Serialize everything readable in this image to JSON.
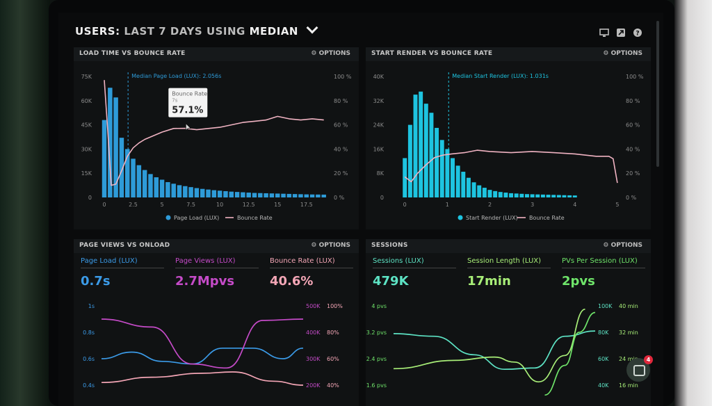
{
  "header": {
    "prefix": "USERS:",
    "dim_part": "LAST 7 DAYS",
    "middle": "USING",
    "metric": "MEDIAN"
  },
  "toolbar": {
    "icons": [
      "monitor-icon",
      "export-icon",
      "help-icon"
    ]
  },
  "panel1": {
    "title": "LOAD TIME VS BOUNCE RATE",
    "options": "⚙ OPTIONS",
    "median_label": "Median Page Load (LUX): 2.056s",
    "tooltip": {
      "title": "Bounce Rate",
      "sub": "7s",
      "value": "57.1%"
    },
    "legend": [
      "Page Load (LUX)",
      "Bounce Rate"
    ]
  },
  "panel2": {
    "title": "START RENDER VS BOUNCE RATE",
    "options": "⚙ OPTIONS",
    "median_label": "Median Start Render (LUX): 1.031s",
    "legend": [
      "Start Render (LUX)",
      "Bounce Rate"
    ]
  },
  "panel3": {
    "title": "PAGE VIEWS VS ONLOAD",
    "options": "⚙ OPTIONS",
    "kpis": [
      {
        "label": "Page Load (LUX)",
        "value": "0.7s",
        "color": "#3b9be8"
      },
      {
        "label": "Page Views (LUX)",
        "value": "2.7Mpvs",
        "color": "#c54bc8"
      },
      {
        "label": "Bounce Rate (LUX)",
        "value": "40.6%",
        "color": "#f4a6b6"
      }
    ]
  },
  "panel4": {
    "title": "SESSIONS",
    "options": "⚙ OPTIONS",
    "kpis": [
      {
        "label": "Sessions (LUX)",
        "value": "479K",
        "color": "#5de3c4"
      },
      {
        "label": "Session Length (LUX)",
        "value": "17min",
        "color": "#a8ee78"
      },
      {
        "label": "PVs Per Session (LUX)",
        "value": "2pvs",
        "color": "#6fe46a"
      }
    ]
  },
  "chart_data": [
    {
      "type": "bar+line",
      "title": "LOAD TIME VS BOUNCE RATE",
      "x_ticks": [
        "0",
        "2.5",
        "5",
        "7.5",
        "10",
        "12.5",
        "15",
        "17.5"
      ],
      "x_range": [
        0,
        19.5
      ],
      "y_left_ticks": [
        "0",
        "15K",
        "30K",
        "45K",
        "60K",
        "75K"
      ],
      "y_left_range": [
        0,
        75000
      ],
      "y_right_ticks": [
        "0 %",
        "20 %",
        "40 %",
        "60 %",
        "80 %",
        "100 %"
      ],
      "y_right_range": [
        0,
        100
      ],
      "median_x": 2.056,
      "bars_x_step": 0.5,
      "bars": [
        48000,
        68000,
        62000,
        37000,
        30000,
        24000,
        20000,
        17000,
        14500,
        12500,
        11000,
        9500,
        8500,
        7600,
        7000,
        6400,
        5800,
        5300,
        4900,
        4500,
        4200,
        3900,
        3600,
        3400,
        3200,
        3000,
        2800,
        2700,
        2600,
        2500,
        2400,
        2300,
        2200,
        2100,
        2000,
        1900,
        1850,
        1800,
        1750
      ],
      "bounce_x": [
        0,
        0.3,
        0.6,
        1.0,
        1.5,
        2.0,
        2.5,
        3.0,
        3.5,
        4.0,
        5.0,
        6.0,
        7.0,
        8.0,
        9.0,
        10.0,
        11.0,
        12.0,
        13.0,
        14.0,
        15.0,
        16.0,
        17.0,
        18.0,
        19.0
      ],
      "bounce_y": [
        97,
        55,
        10,
        11,
        22,
        34,
        41,
        45,
        48,
        50,
        54,
        57,
        57.1,
        56,
        57,
        58,
        60,
        62,
        63,
        64,
        67,
        65,
        64,
        65,
        64
      ],
      "legend": [
        "Page Load (LUX)",
        "Bounce Rate"
      ]
    },
    {
      "type": "bar+line",
      "title": "START RENDER VS BOUNCE RATE",
      "x_ticks": [
        "0",
        "1",
        "2",
        "3",
        "4",
        "5"
      ],
      "x_range": [
        -0.2,
        5.1
      ],
      "y_left_ticks": [
        "0",
        "8K",
        "16K",
        "24K",
        "32K",
        "40K"
      ],
      "y_left_range": [
        0,
        40000
      ],
      "y_right_ticks": [
        "0 %",
        "20 %",
        "40 %",
        "60 %",
        "80 %",
        "100 %"
      ],
      "y_right_range": [
        0,
        100
      ],
      "median_x": 1.031,
      "bars_x_step": 0.125,
      "bars": [
        13000,
        24000,
        34000,
        35000,
        31000,
        28000,
        23000,
        19000,
        16000,
        13000,
        10500,
        8500,
        6500,
        5000,
        4000,
        3200,
        2500,
        2100,
        1800,
        1600,
        1400,
        1300,
        1200,
        1100,
        1050,
        1000,
        950,
        900,
        850,
        800,
        750,
        700,
        650
      ],
      "bounce_x": [
        0,
        0.15,
        0.3,
        0.5,
        0.7,
        0.9,
        1.1,
        1.4,
        1.7,
        2.0,
        2.5,
        3.0,
        3.5,
        4.0,
        4.5,
        4.8,
        4.9,
        5.0
      ],
      "bounce_y": [
        17,
        13,
        20,
        27,
        33,
        35,
        36,
        37,
        39,
        38,
        37,
        38,
        37,
        36,
        34,
        34,
        32,
        12
      ],
      "legend": [
        "Start Render (LUX)",
        "Bounce Rate"
      ]
    },
    {
      "type": "line",
      "title": "PAGE VIEWS VS ONLOAD",
      "y_left_ticks": [
        "0.4s",
        "0.6s",
        "0.8s",
        "1s"
      ],
      "y_left_range": [
        0.4,
        1.0
      ],
      "y_mid_ticks": [
        "200K",
        "300K",
        "400K",
        "500K"
      ],
      "y_mid_range": [
        200,
        500
      ],
      "y_right_ticks": [
        "40%",
        "60%",
        "80%",
        "100%"
      ],
      "y_right_range": [
        40,
        100
      ],
      "x_range": [
        0,
        1
      ],
      "series": [
        {
          "name": "Page Load (LUX)",
          "axis": "left",
          "color": "#3b9be8",
          "x": [
            0,
            0.15,
            0.3,
            0.45,
            0.6,
            0.75,
            0.9,
            1
          ],
          "y": [
            0.6,
            0.65,
            0.58,
            0.56,
            0.68,
            0.68,
            0.6,
            0.68
          ]
        },
        {
          "name": "Page Views (LUX)",
          "axis": "mid",
          "color": "#c54bc8",
          "x": [
            0,
            0.25,
            0.45,
            0.62,
            0.8,
            1
          ],
          "y": [
            450,
            420,
            280,
            265,
            445,
            450
          ]
        },
        {
          "name": "Bounce Rate (LUX)",
          "axis": "right",
          "color": "#f4a6b6",
          "x": [
            0,
            0.25,
            0.5,
            0.65,
            0.85,
            1
          ],
          "y": [
            42,
            46,
            49,
            50,
            43,
            40
          ]
        }
      ]
    },
    {
      "type": "line",
      "title": "SESSIONS",
      "y_left_ticks": [
        "1.6 pvs",
        "2.4 pvs",
        "3.2 pvs",
        "4 pvs"
      ],
      "y_left_range": [
        1.6,
        4.0
      ],
      "y_mid_ticks": [
        "40K",
        "60K",
        "80K",
        "100K"
      ],
      "y_mid_range": [
        40,
        100
      ],
      "y_right_ticks": [
        "16 min",
        "24 min",
        "32 min",
        "40 min"
      ],
      "y_right_range": [
        16,
        40
      ],
      "x_range": [
        0,
        1
      ],
      "series": [
        {
          "name": "Sessions (LUX)",
          "axis": "mid",
          "color": "#5de3c4",
          "x": [
            0,
            0.2,
            0.4,
            0.55,
            0.7,
            0.85,
            1
          ],
          "y": [
            79,
            77,
            63,
            52,
            53,
            77,
            81
          ]
        },
        {
          "name": "Session Length (LUX)",
          "axis": "right",
          "color": "#a8ee78",
          "x": [
            0,
            0.3,
            0.5,
            0.6,
            0.72,
            0.85,
            0.95
          ],
          "y": [
            21,
            23.5,
            24.5,
            23,
            17,
            25,
            39
          ]
        },
        {
          "name": "PVs Per Session (LUX)",
          "axis": "left",
          "color": "#6fe46a",
          "x": [
            0.75,
            0.85,
            0.92,
            1
          ],
          "y": [
            1.3,
            2.2,
            3.2,
            3.8
          ]
        }
      ]
    }
  ]
}
